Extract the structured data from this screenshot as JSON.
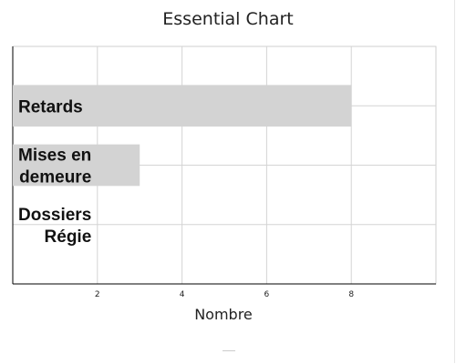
{
  "chart_data": {
    "type": "bar",
    "orientation": "horizontal",
    "title": "Essential Chart",
    "xlabel": "Nombre",
    "ylabel": "",
    "categories": [
      "Retards",
      "Mises en\ndemeure",
      "Dossiers\nRégie"
    ],
    "values": [
      8,
      3,
      0
    ],
    "xlim": [
      0,
      10
    ],
    "xticks": [
      2,
      4,
      6,
      8
    ],
    "grid": true,
    "colors": {
      "bar": "#d3d3d3",
      "grid": "#d4d4d4",
      "text": "#222222"
    }
  }
}
